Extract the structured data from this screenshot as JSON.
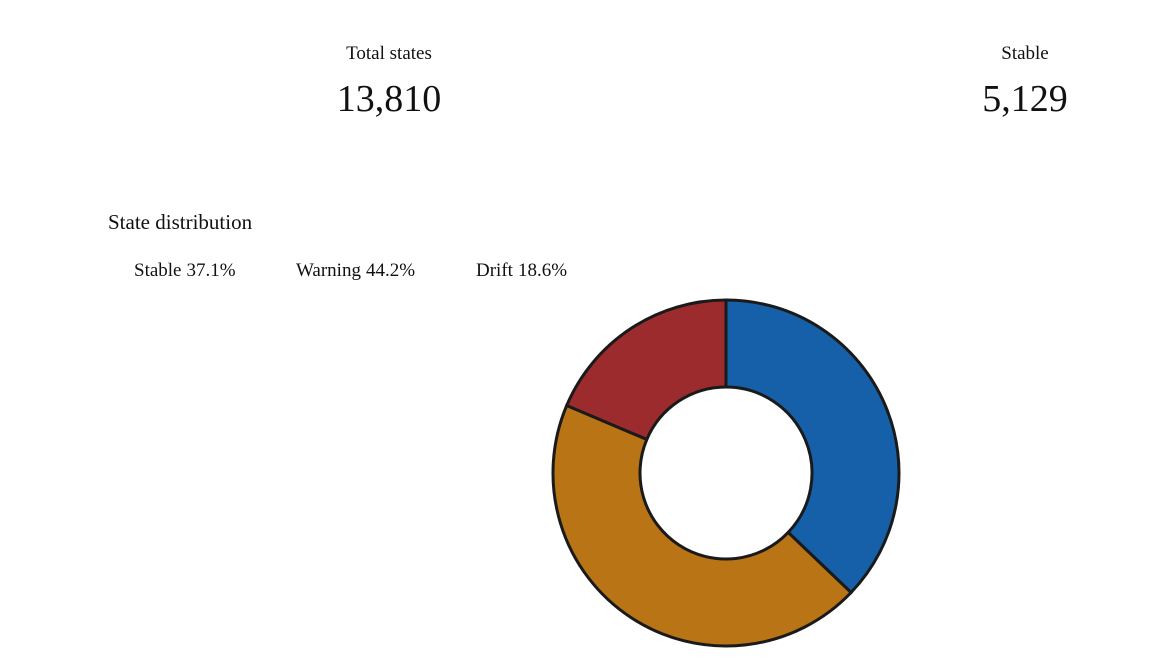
{
  "kpis": [
    {
      "label": "Total states",
      "value": "13,810",
      "color": "#0f4a86"
    },
    {
      "label": "Stable",
      "value": "5,129",
      "color": "#1f5a0a"
    }
  ],
  "chart_data": {
    "type": "donut",
    "title": "State distribution",
    "categories": [
      "Stable",
      "Warning",
      "Drift"
    ],
    "values": [
      37.1,
      44.2,
      18.6
    ],
    "value_labels": [
      "37.1%",
      "44.2%",
      "18.6%"
    ],
    "colors": [
      "#1560a8",
      "#b97416",
      "#9c2b2e"
    ]
  }
}
